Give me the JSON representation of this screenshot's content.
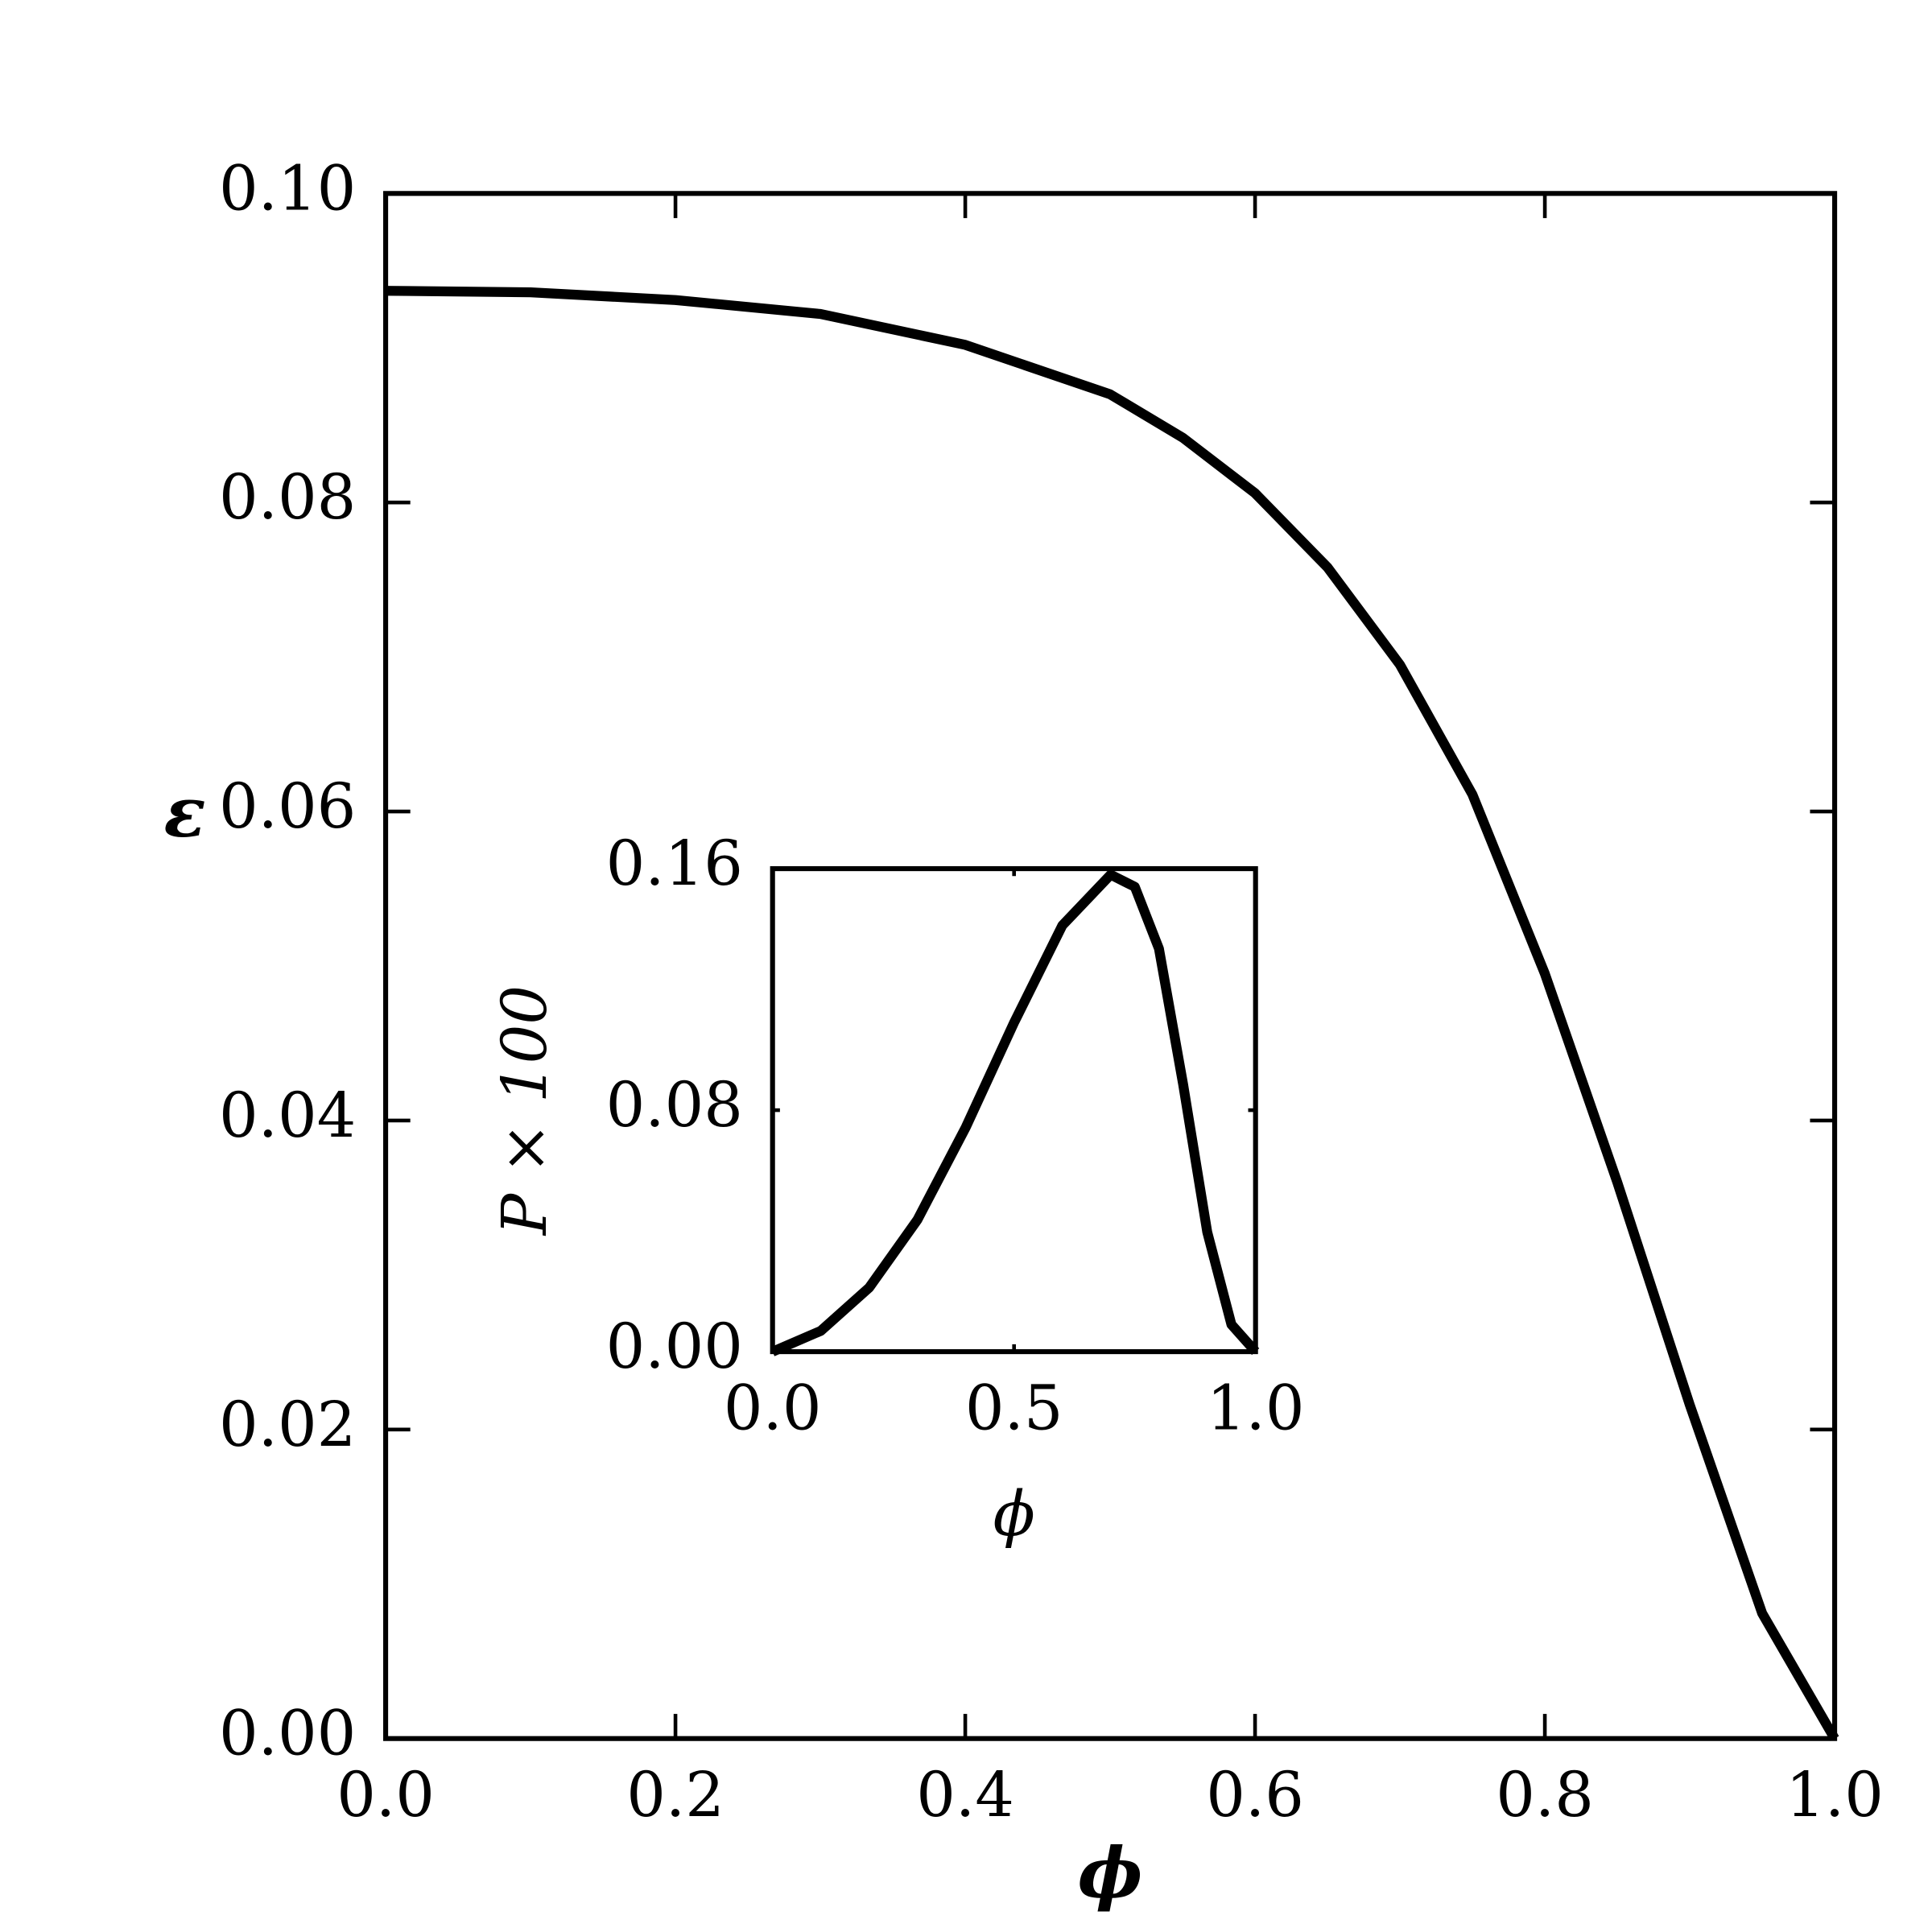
{
  "chart_data": [
    {
      "type": "line",
      "xlabel": "ϕ",
      "ylabel": "ε",
      "color": "#000000",
      "x": [
        0,
        0.1,
        0.2,
        0.3,
        0.4,
        0.5,
        0.55,
        0.6,
        0.65,
        0.7,
        0.75,
        0.8,
        0.85,
        0.9,
        0.95,
        1.0
      ],
      "values": [
        0.0937,
        0.0936,
        0.0931,
        0.0922,
        0.0902,
        0.087,
        0.0842,
        0.0806,
        0.0758,
        0.0695,
        0.0611,
        0.0495,
        0.036,
        0.0216,
        0.0081,
        0
      ],
      "xlim": [
        0,
        1
      ],
      "ylim": [
        0,
        0.1
      ],
      "xticks": [
        {
          "value": 0,
          "label": "0.0"
        },
        0.2,
        0.4,
        0.6,
        0.8,
        {
          "value": 1,
          "label": "1.0"
        }
      ],
      "yticks": [
        {
          "value": 0,
          "label": "0.00"
        },
        0.02,
        0.04,
        0.06,
        0.08,
        {
          "value": 0.1,
          "label": "0.10"
        }
      ]
    },
    {
      "type": "line",
      "xlabel": "ϕ",
      "ylabel": "P × 100",
      "color": "#000000",
      "x": [
        0,
        0.1,
        0.2,
        0.3,
        0.4,
        0.5,
        0.6,
        0.7,
        0.75,
        0.8,
        0.85,
        0.9,
        0.95,
        1.0
      ],
      "values": [
        0,
        0.0069,
        0.0212,
        0.0437,
        0.0743,
        0.109,
        0.1412,
        0.158,
        0.154,
        0.1335,
        0.0886,
        0.0396,
        0.009,
        0
      ],
      "xlim": [
        0,
        1
      ],
      "ylim": [
        0,
        0.16
      ],
      "xticks": [
        {
          "value": 0,
          "label": "0.0"
        },
        0.5,
        {
          "value": 1,
          "label": "1.0"
        }
      ],
      "yticks": [
        {
          "value": 0,
          "label": "0.00"
        },
        0.08,
        0.16
      ]
    }
  ]
}
